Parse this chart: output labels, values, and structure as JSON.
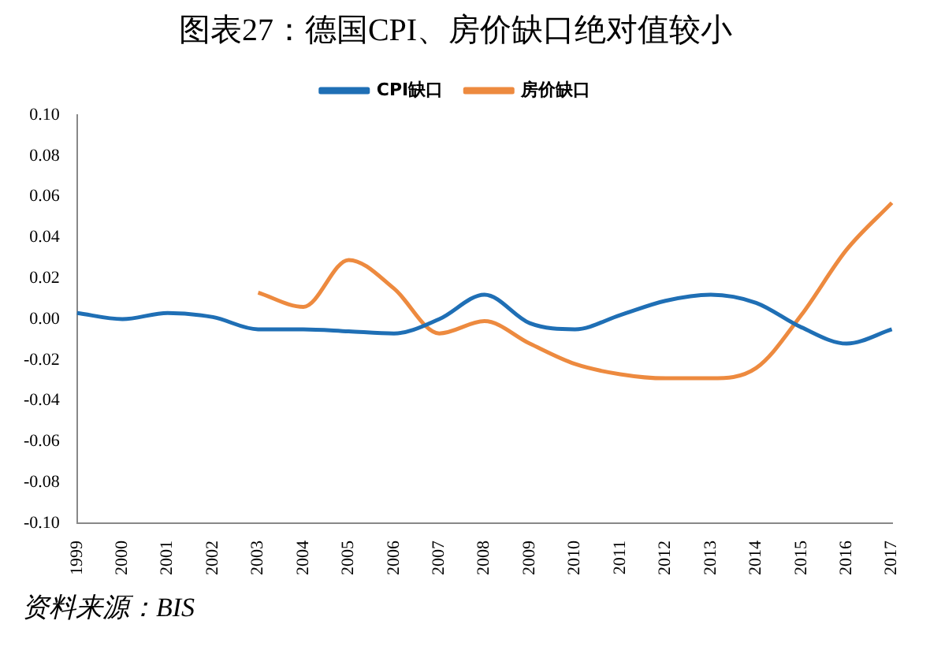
{
  "chart_data": {
    "type": "line",
    "title": "图表27：德国CPI、房价缺口绝对值较小",
    "categories": [
      "1999",
      "2000",
      "2001",
      "2002",
      "2003",
      "2004",
      "2005",
      "2006",
      "2007",
      "2008",
      "2009",
      "2010",
      "2011",
      "2012",
      "2013",
      "2014",
      "2015",
      "2016",
      "2017"
    ],
    "series": [
      {
        "name": "CPI缺口",
        "color": "#1f6fb5",
        "values": [
          0.003,
          0.0,
          0.003,
          0.001,
          -0.005,
          -0.005,
          -0.006,
          -0.007,
          0.0,
          0.012,
          -0.002,
          -0.005,
          0.002,
          0.009,
          0.012,
          0.008,
          -0.004,
          -0.012,
          -0.005
        ]
      },
      {
        "name": "房价缺口",
        "color": "#ed8a3f",
        "values": [
          null,
          null,
          null,
          null,
          0.013,
          0.006,
          0.029,
          0.015,
          -0.007,
          -0.001,
          -0.012,
          -0.022,
          -0.027,
          -0.029,
          -0.029,
          -0.024,
          0.002,
          0.034,
          0.057
        ]
      }
    ],
    "ylim": [
      -0.1,
      0.1
    ],
    "yticks": [
      {
        "value": -0.1,
        "label": "-0.10"
      },
      {
        "value": -0.08,
        "label": "-0.08"
      },
      {
        "value": -0.06,
        "label": "-0.06"
      },
      {
        "value": -0.04,
        "label": "-0.04"
      },
      {
        "value": -0.02,
        "label": "-0.02"
      },
      {
        "value": 0,
        "label": "0.00"
      },
      {
        "value": 0.02,
        "label": "0.02"
      },
      {
        "value": 0.04,
        "label": "0.04"
      },
      {
        "value": 0.06,
        "label": "0.06"
      },
      {
        "value": 0.08,
        "label": "0.08"
      },
      {
        "value": 0.1,
        "label": "0.10"
      }
    ],
    "grid": false,
    "legend": "top",
    "annotations": [
      "资料来源：BIS"
    ]
  }
}
